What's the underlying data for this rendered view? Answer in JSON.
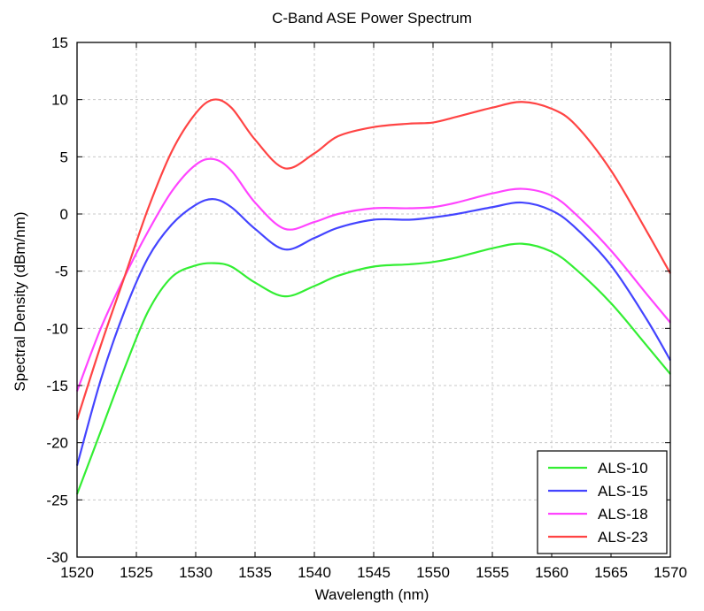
{
  "chart_data": {
    "type": "line",
    "title": "C-Band ASE Power Spectrum",
    "xlabel": "Wavelength (nm)",
    "ylabel": "Spectral Density (dBm/nm)",
    "xlim": [
      1520,
      1570
    ],
    "ylim": [
      -30,
      15
    ],
    "xticks": [
      1520,
      1525,
      1530,
      1535,
      1540,
      1545,
      1550,
      1555,
      1560,
      1565,
      1570
    ],
    "yticks": [
      -30,
      -25,
      -20,
      -15,
      -10,
      -5,
      0,
      5,
      10,
      15
    ],
    "grid": true,
    "legend_position": "bottom-right",
    "x": [
      1520,
      1522,
      1524,
      1526,
      1528,
      1530,
      1531.5,
      1533,
      1535,
      1537.5,
      1540,
      1542,
      1545,
      1548,
      1550,
      1552,
      1555,
      1557.5,
      1560,
      1562,
      1565,
      1568,
      1570
    ],
    "series": [
      {
        "name": "ALS-10",
        "color": "#33ee33",
        "values": [
          -24.5,
          -19.0,
          -13.5,
          -8.5,
          -5.5,
          -4.5,
          -4.3,
          -4.6,
          -6.0,
          -7.2,
          -6.3,
          -5.4,
          -4.6,
          -4.4,
          -4.2,
          -3.8,
          -3.0,
          -2.6,
          -3.3,
          -4.8,
          -7.8,
          -11.5,
          -14.0
        ]
      },
      {
        "name": "ALS-15",
        "color": "#4444ff",
        "values": [
          -22.0,
          -14.5,
          -8.5,
          -3.8,
          -0.9,
          0.8,
          1.3,
          0.6,
          -1.3,
          -3.1,
          -2.1,
          -1.2,
          -0.5,
          -0.5,
          -0.3,
          0.0,
          0.6,
          1.0,
          0.3,
          -1.2,
          -4.5,
          -9.2,
          -12.8
        ]
      },
      {
        "name": "ALS-18",
        "color": "#ff44ff",
        "values": [
          -15.5,
          -10.0,
          -5.5,
          -1.5,
          2.0,
          4.3,
          4.8,
          3.8,
          1.0,
          -1.3,
          -0.7,
          0.0,
          0.5,
          0.5,
          0.6,
          1.0,
          1.8,
          2.2,
          1.6,
          0.0,
          -3.2,
          -7.0,
          -9.5
        ]
      },
      {
        "name": "ALS-23",
        "color": "#ff4444",
        "values": [
          -18.0,
          -11.5,
          -5.5,
          0.5,
          5.5,
          8.8,
          10.0,
          9.3,
          6.5,
          4.0,
          5.3,
          6.8,
          7.6,
          7.9,
          8.0,
          8.5,
          9.3,
          9.8,
          9.2,
          7.8,
          3.8,
          -1.5,
          -5.2
        ]
      }
    ]
  }
}
